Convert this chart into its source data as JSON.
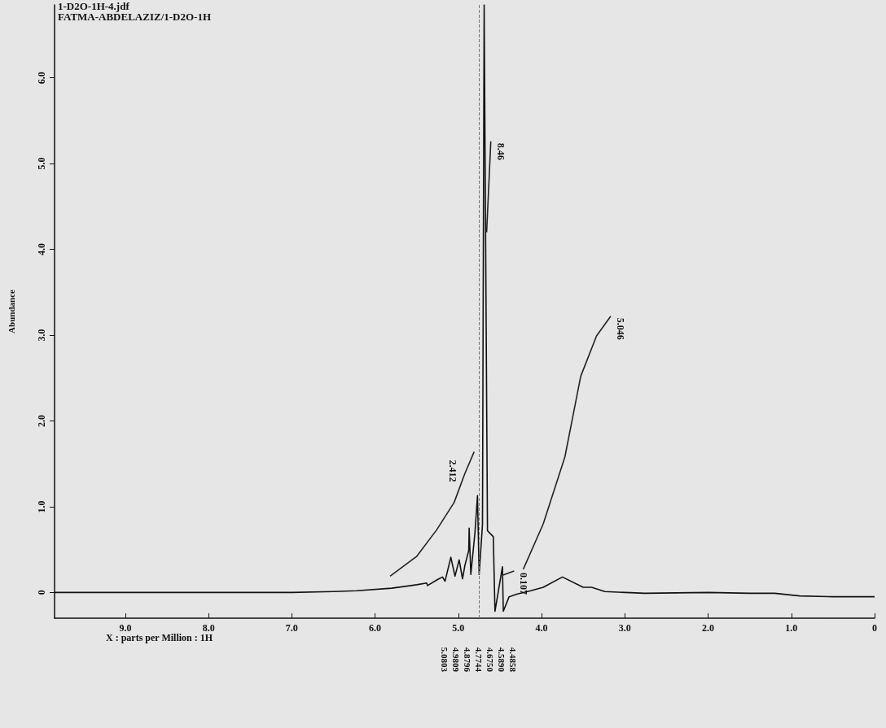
{
  "chart_data": {
    "type": "line",
    "title": "1-D2O-1H-4.jdf",
    "subtitle": "FATMA-ABDELAZIZ/1-D2O-1H",
    "xlabel": "X : parts per Million : 1H",
    "ylabel": "Abundance",
    "xlim": [
      9.85,
      0
    ],
    "xticks": [
      {
        "value": 9,
        "label": "9.0"
      },
      {
        "value": 8,
        "label": "8.0"
      },
      {
        "value": 7,
        "label": "7.0"
      },
      {
        "value": 6,
        "label": "6.0"
      },
      {
        "value": 5,
        "label": "5.0"
      },
      {
        "value": 4,
        "label": "4.0"
      },
      {
        "value": 3,
        "label": "3.0"
      },
      {
        "value": 2,
        "label": "2.0"
      },
      {
        "value": 1,
        "label": "1.0"
      },
      0
    ],
    "ylim": [
      -0.3,
      6.85
    ],
    "yticks": [
      0,
      {
        "value": 1,
        "label": "1.0"
      },
      {
        "value": 2,
        "label": "2.0"
      },
      {
        "value": 3,
        "label": "3.0"
      },
      {
        "value": 4,
        "label": "4.0"
      },
      {
        "value": 5,
        "label": "5.0"
      },
      {
        "value": 6,
        "label": "6.0"
      }
    ],
    "grid": false,
    "marker": "none",
    "series": [
      {
        "color": "#111111",
        "x": [
          9.85,
          8.0,
          7.0,
          6.5,
          6.22,
          5.8,
          5.5,
          5.38,
          5.37,
          5.25,
          5.19,
          5.16,
          5.09,
          5.04,
          4.99,
          4.95,
          4.92,
          4.875,
          4.87,
          4.85,
          4.8,
          4.77,
          4.75,
          4.71,
          4.69,
          4.65,
          4.61,
          4.58,
          4.56,
          4.47,
          4.46,
          4.39,
          4.3,
          4.13,
          3.98,
          3.75,
          3.5,
          3.4,
          3.24,
          2.76,
          2.0,
          1.5,
          1.2,
          0.9,
          0.5,
          0.0
        ],
        "values": [
          0.0,
          0.0,
          0.0,
          0.01,
          0.02,
          0.05,
          0.09,
          0.11,
          0.08,
          0.15,
          0.18,
          0.13,
          0.41,
          0.19,
          0.38,
          0.16,
          0.32,
          0.49,
          0.75,
          0.21,
          0.7,
          1.13,
          0.21,
          0.79,
          6.85,
          0.72,
          0.68,
          0.65,
          -0.22,
          0.3,
          -0.22,
          -0.05,
          -0.02,
          0.02,
          0.06,
          0.18,
          0.06,
          0.06,
          0.01,
          -0.01,
          0.0,
          -0.01,
          -0.01,
          -0.04,
          -0.05,
          -0.05
        ]
      },
      {
        "color": "#222222",
        "x": [
          5.82,
          5.5,
          5.26,
          5.05,
          4.92,
          4.81
        ],
        "values": [
          0.19,
          0.42,
          0.73,
          1.05,
          1.39,
          1.64
        ]
      },
      {
        "color": "#222222",
        "x": [
          4.66,
          4.61
        ],
        "values": [
          4.2,
          5.26
        ]
      },
      {
        "color": "#222222",
        "x": [
          4.47,
          4.33
        ],
        "values": [
          0.2,
          0.25
        ]
      },
      {
        "color": "#222222",
        "x": [
          4.22,
          3.98,
          3.72,
          3.53,
          3.34,
          3.17
        ],
        "values": [
          0.27,
          0.8,
          1.58,
          2.52,
          2.99,
          3.22
        ]
      }
    ],
    "ref_lines": [
      {
        "axis": "x",
        "value": 4.75,
        "color": "#777777",
        "line_style": "dashed"
      }
    ],
    "annotations": [
      "2.412",
      "8.46",
      "0.107",
      "5.046",
      "5.0803",
      "4.9809",
      "4.8796",
      "4.7744",
      "4.6750",
      "4.5890",
      "4.4858"
    ]
  }
}
